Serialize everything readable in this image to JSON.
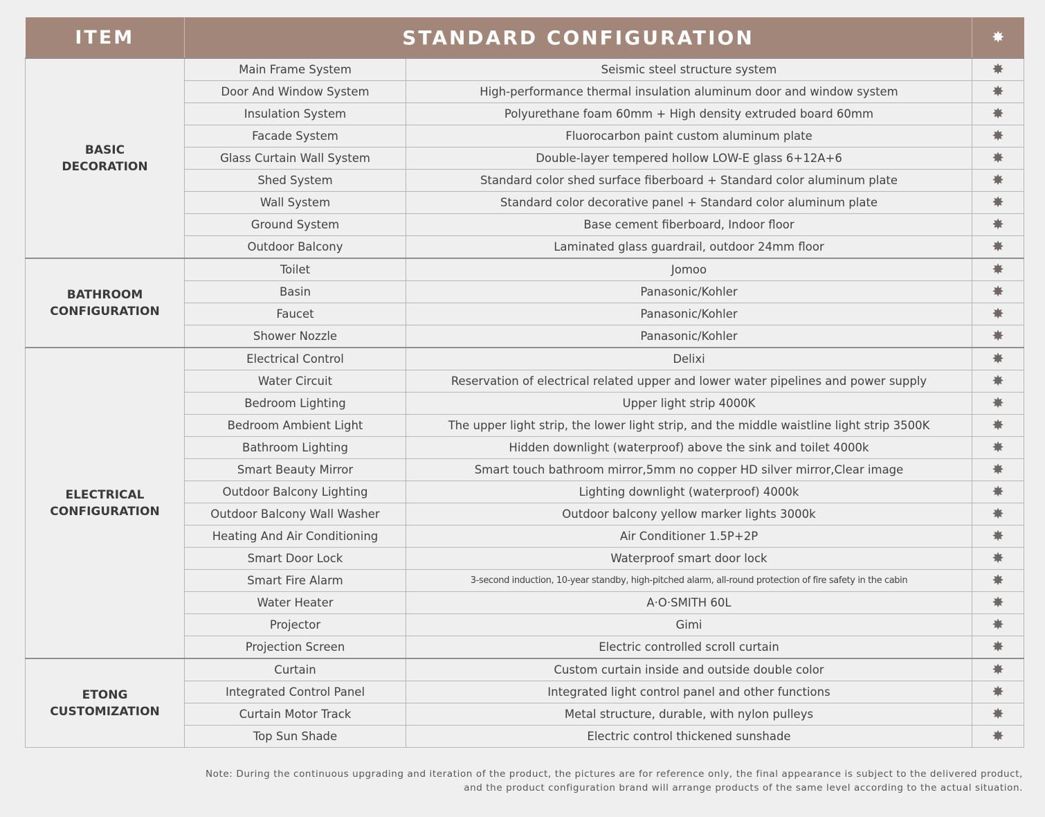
{
  "header": {
    "item": "ITEM",
    "config": "STANDARD CONFIGURATION",
    "star_icon": "star-icon"
  },
  "star_glyph": "✸",
  "groups": [
    {
      "label_lines": [
        "BASIC",
        "DECORATION"
      ],
      "rows": [
        {
          "name": "Main Frame System",
          "desc": "Seismic steel structure system"
        },
        {
          "name": "Door And Window System",
          "desc": "High-performance thermal insulation aluminum door and window system"
        },
        {
          "name": "Insulation System",
          "desc": "Polyurethane foam 60mm + High density extruded board 60mm"
        },
        {
          "name": "Facade System",
          "desc": "Fluorocarbon paint custom aluminum plate"
        },
        {
          "name": "Glass Curtain Wall System",
          "desc": "Double-layer tempered hollow LOW-E glass 6+12A+6"
        },
        {
          "name": "Shed System",
          "desc": "Standard color shed surface fiberboard + Standard color aluminum plate"
        },
        {
          "name": "Wall System",
          "desc": "Standard color decorative panel + Standard color aluminum plate"
        },
        {
          "name": "Ground System",
          "desc": "Base cement fiberboard, Indoor  floor"
        },
        {
          "name": "Outdoor Balcony",
          "desc": "Laminated glass guardrail, outdoor 24mm floor"
        }
      ]
    },
    {
      "label_lines": [
        "BATHROOM",
        "CONFIGURATION"
      ],
      "rows": [
        {
          "name": "Toilet",
          "desc": "Jomoo"
        },
        {
          "name": "Basin",
          "desc": "Panasonic/Kohler"
        },
        {
          "name": "Faucet",
          "desc": "Panasonic/Kohler"
        },
        {
          "name": "Shower Nozzle",
          "desc": "Panasonic/Kohler"
        }
      ]
    },
    {
      "label_lines": [
        "ELECTRICAL",
        "CONFIGURATION"
      ],
      "rows": [
        {
          "name": "Electrical Control",
          "desc": "Delixi"
        },
        {
          "name": "Water Circuit",
          "desc": "Reservation of electrical related upper and lower water pipelines and power supply"
        },
        {
          "name": "Bedroom Lighting",
          "desc": "Upper light strip 4000K"
        },
        {
          "name": "Bedroom Ambient Light",
          "desc": "The upper light strip, the lower light strip, and the middle waistline light strip 3500K"
        },
        {
          "name": "Bathroom Lighting",
          "desc": "Hidden downlight (waterproof) above the sink and toilet 4000k"
        },
        {
          "name": "Smart Beauty Mirror",
          "desc": "Smart touch bathroom mirror,5mm no copper HD silver mirror,Clear image"
        },
        {
          "name": "Outdoor Balcony Lighting",
          "desc": "Lighting downlight (waterproof) 4000k"
        },
        {
          "name": "Outdoor Balcony Wall Washer",
          "desc": "Outdoor balcony yellow marker lights 3000k"
        },
        {
          "name": "Heating And Air Conditioning",
          "desc": "Air Conditioner 1.5P+2P"
        },
        {
          "name": "Smart Door Lock",
          "desc": "Waterproof smart door lock"
        },
        {
          "name": "Smart Fire Alarm",
          "desc": "3-second induction, 10-year standby, high-pitched alarm, all-round protection of fire safety in the cabin",
          "small": true
        },
        {
          "name": "Water Heater",
          "desc": "A·O·SMITH    60L"
        },
        {
          "name": "Projector",
          "desc": "Gimi"
        },
        {
          "name": "Projection Screen",
          "desc": "Electric controlled scroll curtain"
        }
      ]
    },
    {
      "label_lines": [
        "ETONG",
        "CUSTOMIZATION"
      ],
      "rows": [
        {
          "name": "Curtain",
          "desc": "Custom curtain inside and outside double color"
        },
        {
          "name": "Integrated Control Panel",
          "desc": "Integrated light control panel and other functions"
        },
        {
          "name": "Curtain Motor Track",
          "desc": "Metal structure, durable, with nylon pulleys"
        },
        {
          "name": "Top Sun Shade",
          "desc": "Electric control thickened sunshade"
        }
      ]
    }
  ],
  "note": {
    "line1": "Note: During the continuous upgrading and iteration of the product, the pictures are for reference only, the final appearance is subject to the delivered product,",
    "line2": "and the product configuration brand will arrange products of the same level according to the actual situation."
  },
  "colors": {
    "header_bg": "#a3867a",
    "page_bg": "#efefef",
    "text": "#3f3f3f"
  }
}
